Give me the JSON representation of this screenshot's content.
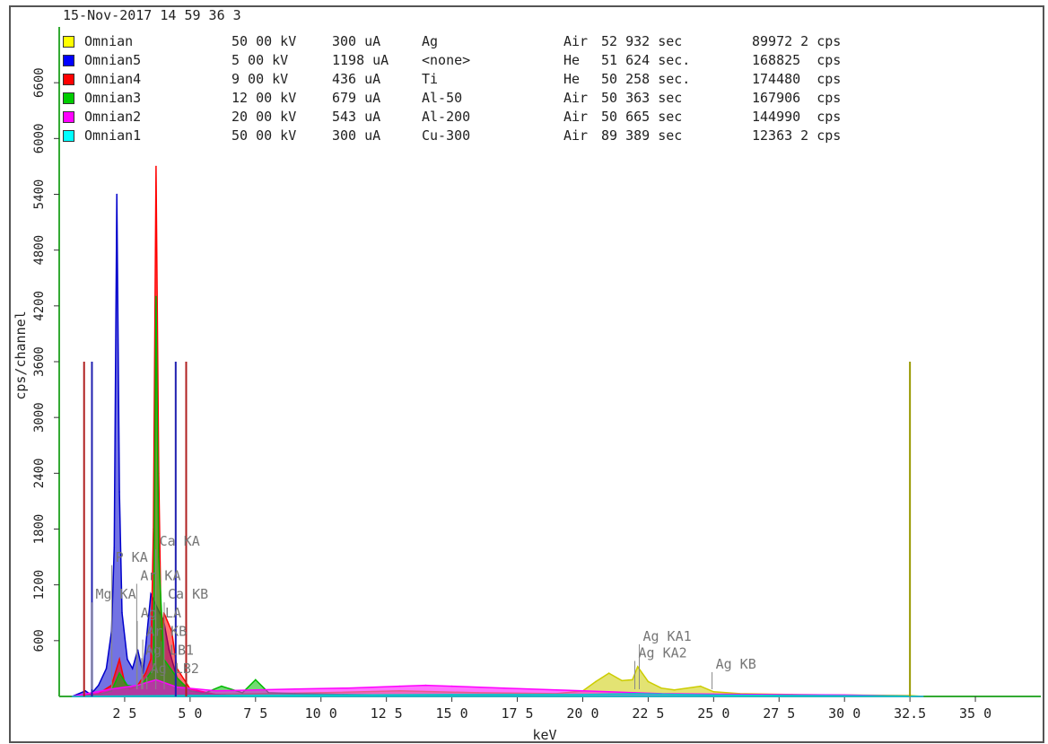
{
  "header": {
    "datetime": "15-Nov-2017 14 59 36 3"
  },
  "legend": [
    {
      "name": "Omnian",
      "color": "#ffff00",
      "kv": "50 00 kV",
      "ua": "300 uA",
      "filter": "Ag",
      "medium": "Air",
      "time": "52 932 sec",
      "rate": "89972 2 cps"
    },
    {
      "name": "Omnian5",
      "color": "#0000ff",
      "kv": "5 00 kV",
      "ua": "1198 uA",
      "filter": "<none>",
      "medium": "He",
      "time": "51 624 sec.",
      "rate": "168825  cps"
    },
    {
      "name": "Omnian4",
      "color": "#ff0000",
      "kv": "9 00 kV",
      "ua": "436 uA",
      "filter": "Ti",
      "medium": "He",
      "time": "50 258 sec.",
      "rate": "174480  cps"
    },
    {
      "name": "Omnian3",
      "color": "#00cc00",
      "kv": "12 00 kV",
      "ua": "679 uA",
      "filter": "Al-50",
      "medium": "Air",
      "time": "50 363 sec",
      "rate": "167906  cps"
    },
    {
      "name": "Omnian2",
      "color": "#ff00ff",
      "kv": "20 00 kV",
      "ua": "543 uA",
      "filter": "Al-200",
      "medium": "Air",
      "time": "50 665 sec",
      "rate": "144990  cps"
    },
    {
      "name": "Omnian1",
      "color": "#00ffff",
      "kv": "50 00 kV",
      "ua": "300 uA",
      "filter": "Cu-300",
      "medium": "Air",
      "time": "89 389 sec",
      "rate": "12363 2 cps"
    }
  ],
  "chart_data": {
    "type": "line",
    "xlabel": "keV",
    "ylabel": "cps/channel",
    "xlim": [
      0,
      37.5
    ],
    "ylim": [
      0,
      7200
    ],
    "x_ticks": [
      {
        "v": 2.5,
        "label": "2 5"
      },
      {
        "v": 5.0,
        "label": "5 0"
      },
      {
        "v": 7.5,
        "label": "7 5"
      },
      {
        "v": 10.0,
        "label": "10 0"
      },
      {
        "v": 12.5,
        "label": "12 5"
      },
      {
        "v": 15.0,
        "label": "15 0"
      },
      {
        "v": 17.5,
        "label": "17 5"
      },
      {
        "v": 20.0,
        "label": "20 0"
      },
      {
        "v": 22.5,
        "label": "22 5"
      },
      {
        "v": 25.0,
        "label": "25 0"
      },
      {
        "v": 27.5,
        "label": "27 5"
      },
      {
        "v": 30.0,
        "label": "30 0"
      },
      {
        "v": 32.5,
        "label": "32.5"
      },
      {
        "v": 35.0,
        "label": "35 0"
      }
    ],
    "y_ticks": [
      {
        "v": 600,
        "label": "600"
      },
      {
        "v": 1200,
        "label": "1200"
      },
      {
        "v": 1800,
        "label": "1800"
      },
      {
        "v": 2400,
        "label": "2400"
      },
      {
        "v": 3000,
        "label": "3000"
      },
      {
        "v": 3600,
        "label": "3600"
      },
      {
        "v": 4200,
        "label": "4200"
      },
      {
        "v": 4800,
        "label": "4800"
      },
      {
        "v": 5400,
        "label": "5400"
      },
      {
        "v": 6000,
        "label": "6000"
      },
      {
        "v": 6600,
        "label": "6600"
      }
    ],
    "series": [
      {
        "name": "Omnian",
        "color": "#cccc00",
        "x": [
          0.5,
          10,
          13,
          16,
          19,
          20,
          20.5,
          21,
          21.5,
          21.9,
          22.1,
          22.5,
          23,
          23.5,
          24.5,
          25,
          26,
          28,
          32.5,
          33
        ],
        "y": [
          0,
          40,
          60,
          40,
          30,
          60,
          160,
          250,
          170,
          180,
          320,
          160,
          90,
          70,
          110,
          50,
          30,
          20,
          10,
          0
        ]
      },
      {
        "name": "Omnian5",
        "color": "#0000cc",
        "x": [
          0.5,
          1.0,
          1.2,
          1.5,
          1.8,
          2.0,
          2.1,
          2.2,
          2.3,
          2.4,
          2.6,
          2.8,
          3.0,
          3.2,
          3.5,
          4.0,
          4.2,
          4.5,
          5.0,
          6.0,
          7.0
        ],
        "y": [
          0,
          60,
          20,
          120,
          300,
          700,
          1600,
          5400,
          2200,
          900,
          400,
          300,
          500,
          250,
          1100,
          800,
          500,
          200,
          60,
          20,
          0
        ]
      },
      {
        "name": "Omnian4",
        "color": "#ff0000",
        "x": [
          0.5,
          1.5,
          2.0,
          2.3,
          2.5,
          2.7,
          3.0,
          3.3,
          3.5,
          3.6,
          3.7,
          3.8,
          3.9,
          4.0,
          4.3,
          4.5,
          5.0,
          6.0,
          7.0
        ],
        "y": [
          0,
          30,
          120,
          400,
          150,
          80,
          120,
          250,
          400,
          1800,
          5700,
          2400,
          600,
          900,
          700,
          300,
          80,
          20,
          0
        ]
      },
      {
        "name": "Omnian3",
        "color": "#00bb00",
        "x": [
          0.5,
          1.5,
          2.0,
          2.3,
          2.6,
          3.0,
          3.3,
          3.6,
          3.7,
          3.8,
          4.0,
          4.5,
          5.0,
          5.5,
          6.2,
          7.0,
          7.5,
          8.0,
          9.0,
          11,
          14,
          18,
          20
        ],
        "y": [
          0,
          20,
          60,
          250,
          120,
          100,
          180,
          300,
          4300,
          1500,
          400,
          200,
          60,
          30,
          110,
          40,
          180,
          40,
          30,
          20,
          10,
          5,
          0
        ]
      },
      {
        "name": "Omnian2",
        "color": "#ff00ff",
        "x": [
          0.5,
          2.0,
          3.0,
          3.7,
          4.5,
          6.0,
          7.5,
          9,
          11,
          13,
          14,
          15,
          17,
          19,
          20,
          21,
          22,
          23,
          25,
          27,
          30,
          33
        ],
        "y": [
          0,
          80,
          120,
          180,
          100,
          60,
          70,
          80,
          90,
          110,
          120,
          110,
          90,
          70,
          60,
          50,
          40,
          30,
          25,
          20,
          15,
          0
        ]
      },
      {
        "name": "Omnian1",
        "color": "#00cccc",
        "x": [
          0.5,
          5,
          10,
          15,
          20,
          21,
          22,
          23,
          25,
          28,
          32,
          33
        ],
        "y": [
          0,
          10,
          15,
          20,
          20,
          25,
          30,
          25,
          15,
          10,
          5,
          0
        ]
      }
    ],
    "vertical_markers": [
      {
        "x": 0.95,
        "y": 3600,
        "color": "#b02020"
      },
      {
        "x": 1.25,
        "y": 3600,
        "color": "#2020b0"
      },
      {
        "x": 4.45,
        "y": 3600,
        "color": "#2020b0"
      },
      {
        "x": 4.85,
        "y": 3600,
        "color": "#b02020"
      },
      {
        "x": 32.5,
        "y": 3600,
        "color": "#999900"
      }
    ],
    "annotations": [
      {
        "label": "Mg KA",
        "x": 1.25,
        "y": 1050
      },
      {
        "label": "P KA",
        "x": 2.01,
        "y": 1450
      },
      {
        "label": "Ca KA",
        "x": 3.69,
        "y": 1620
      },
      {
        "label": "Ar KA",
        "x": 2.96,
        "y": 1250
      },
      {
        "label": "Ca KB",
        "x": 4.01,
        "y": 1050
      },
      {
        "label": "Ag LA",
        "x": 2.98,
        "y": 850
      },
      {
        "label": "Ar KB",
        "x": 3.19,
        "y": 650
      },
      {
        "label": "Ag LB1",
        "x": 3.15,
        "y": 450
      },
      {
        "label": "Ag LB2",
        "x": 3.35,
        "y": 250
      },
      {
        "label": "Ag KA1",
        "x": 22.16,
        "y": 600
      },
      {
        "label": "Ag KA2",
        "x": 21.99,
        "y": 420
      },
      {
        "label": "Ag KB",
        "x": 24.94,
        "y": 300
      }
    ]
  }
}
